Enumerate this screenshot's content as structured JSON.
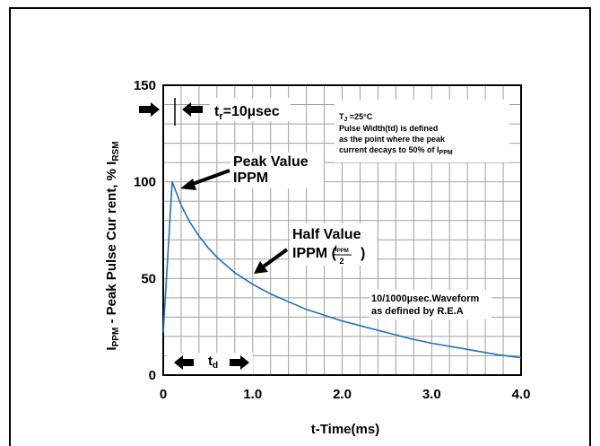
{
  "chart_data": {
    "type": "line",
    "title": "",
    "xlabel": "t-Time(ms)",
    "ylabel_parts": {
      "main": "I",
      "main_sub": "PPM",
      "middle": " - Peak Pulse Cur rent, % I",
      "end_sub": "RSM"
    },
    "xlim": [
      0,
      4.0
    ],
    "ylim": [
      0,
      150
    ],
    "grid": true,
    "x_ticks": [
      {
        "value": 0,
        "label": "0"
      },
      {
        "value": 1.0,
        "label": "1.0"
      },
      {
        "value": 2.0,
        "label": "2.0"
      },
      {
        "value": 3.0,
        "label": "3.0"
      },
      {
        "value": 4.0,
        "label": "4.0"
      }
    ],
    "y_ticks": [
      {
        "value": 0,
        "label": "0"
      },
      {
        "value": 50,
        "label": "50"
      },
      {
        "value": 100,
        "label": "100"
      },
      {
        "value": 150,
        "label": "150"
      }
    ],
    "series": [
      {
        "color": "#1f6fc5",
        "x": [
          0,
          0.1,
          0.15,
          0.2,
          0.3,
          0.4,
          0.5,
          0.6,
          0.7,
          0.8,
          0.9,
          1.0,
          1.2,
          1.4,
          1.6,
          1.8,
          2.0,
          2.25,
          2.5,
          2.75,
          3.0,
          3.25,
          3.5,
          3.75,
          4.0
        ],
        "y": [
          22,
          100,
          94,
          88,
          79,
          72,
          66,
          61,
          57,
          53,
          50,
          47,
          42,
          38,
          34,
          31,
          28,
          25,
          22,
          19,
          16.5,
          14.5,
          12.5,
          10.5,
          9
        ]
      }
    ],
    "annotations": {
      "tr": {
        "prefix": "t",
        "sub": "r",
        "suffix": "=10µsec"
      },
      "peak": {
        "line1": "Peak Value",
        "line2": "IPPM",
        "x": 0.1,
        "y": 100
      },
      "half": {
        "line1": "Half Value",
        "line2": "IPPM (",
        "frac_num_main": "I",
        "frac_num_sub": "PPM",
        "frac_den": "2",
        "close": ")",
        "x": 1.0,
        "y": 50
      },
      "note": {
        "tj_main": "T",
        "tj_sub": "J",
        "tj_rest": " =25°C",
        "line2": "Pulse Width(td) is defined",
        "line3": "as the point where the peak",
        "line4_main": "current decays to 50% of I",
        "line4_sub": "PPM"
      },
      "waveform": {
        "line1": "10/1000µsec.Waveform",
        "line2": "as defined by R.E.A"
      },
      "td": {
        "main": "t",
        "sub": "d"
      }
    }
  },
  "colors": {
    "grid": "#a0a0a0",
    "axis": "#000000",
    "series": "#1f6fc5"
  }
}
